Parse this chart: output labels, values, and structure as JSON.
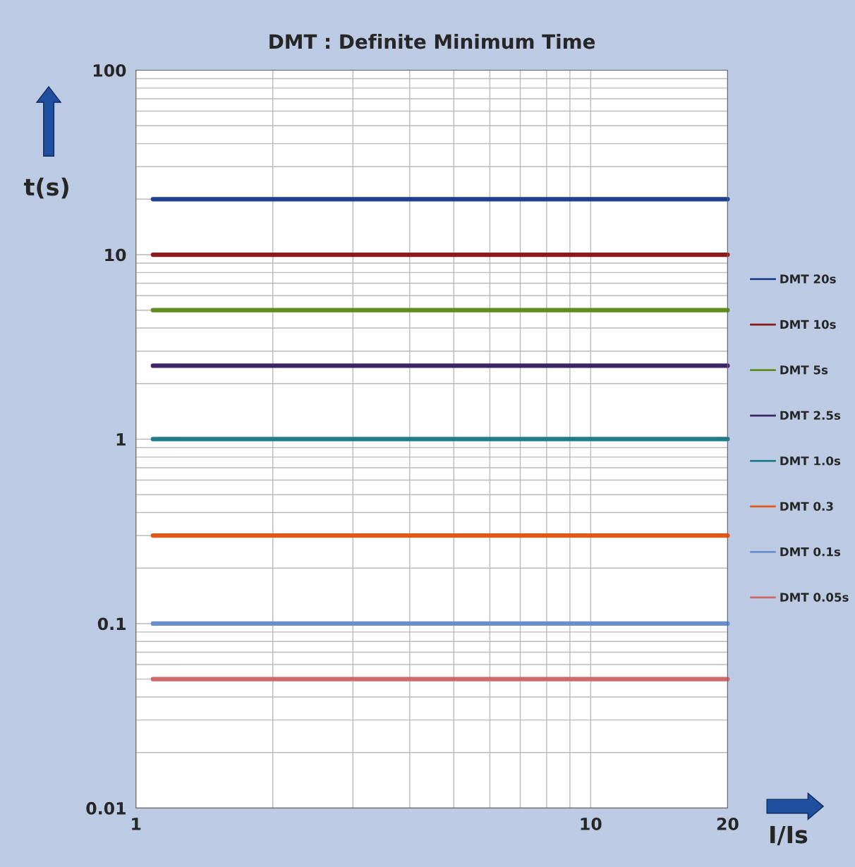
{
  "chart_data": {
    "type": "line",
    "title": "DMT : Definite Minimum Time",
    "xlabel": "I/Is",
    "ylabel": "t(s)",
    "log": "xy",
    "xlim": [
      1,
      20
    ],
    "ylim": [
      0.01,
      100
    ],
    "xticks": [
      1,
      10,
      20
    ],
    "yticks": [
      0.01,
      0.1,
      1,
      10,
      100
    ],
    "grid": true,
    "legend": "right",
    "marker": "none",
    "line_style": "solid",
    "x": [
      1.09,
      20
    ],
    "series": [
      {
        "name": "DMT 20s",
        "color": "#1f3f8f",
        "values": [
          20,
          20
        ]
      },
      {
        "name": "DMT 10s",
        "color": "#8b1a1a",
        "values": [
          10,
          10
        ]
      },
      {
        "name": "DMT 5s",
        "color": "#5e8c1e",
        "values": [
          5,
          5
        ]
      },
      {
        "name": "DMT 2.5s",
        "color": "#3b2468",
        "values": [
          2.5,
          2.5
        ]
      },
      {
        "name": "DMT 1.0s",
        "color": "#1f7a8c",
        "values": [
          1,
          1
        ]
      },
      {
        "name": "DMT 0.3",
        "color": "#e0581a",
        "values": [
          0.3,
          0.3
        ]
      },
      {
        "name": "DMT 0.1s",
        "color": "#6a8fd0",
        "values": [
          0.1,
          0.1
        ]
      },
      {
        "name": "DMT 0.05s",
        "color": "#cc6a6a",
        "values": [
          0.05,
          0.05
        ]
      }
    ]
  }
}
